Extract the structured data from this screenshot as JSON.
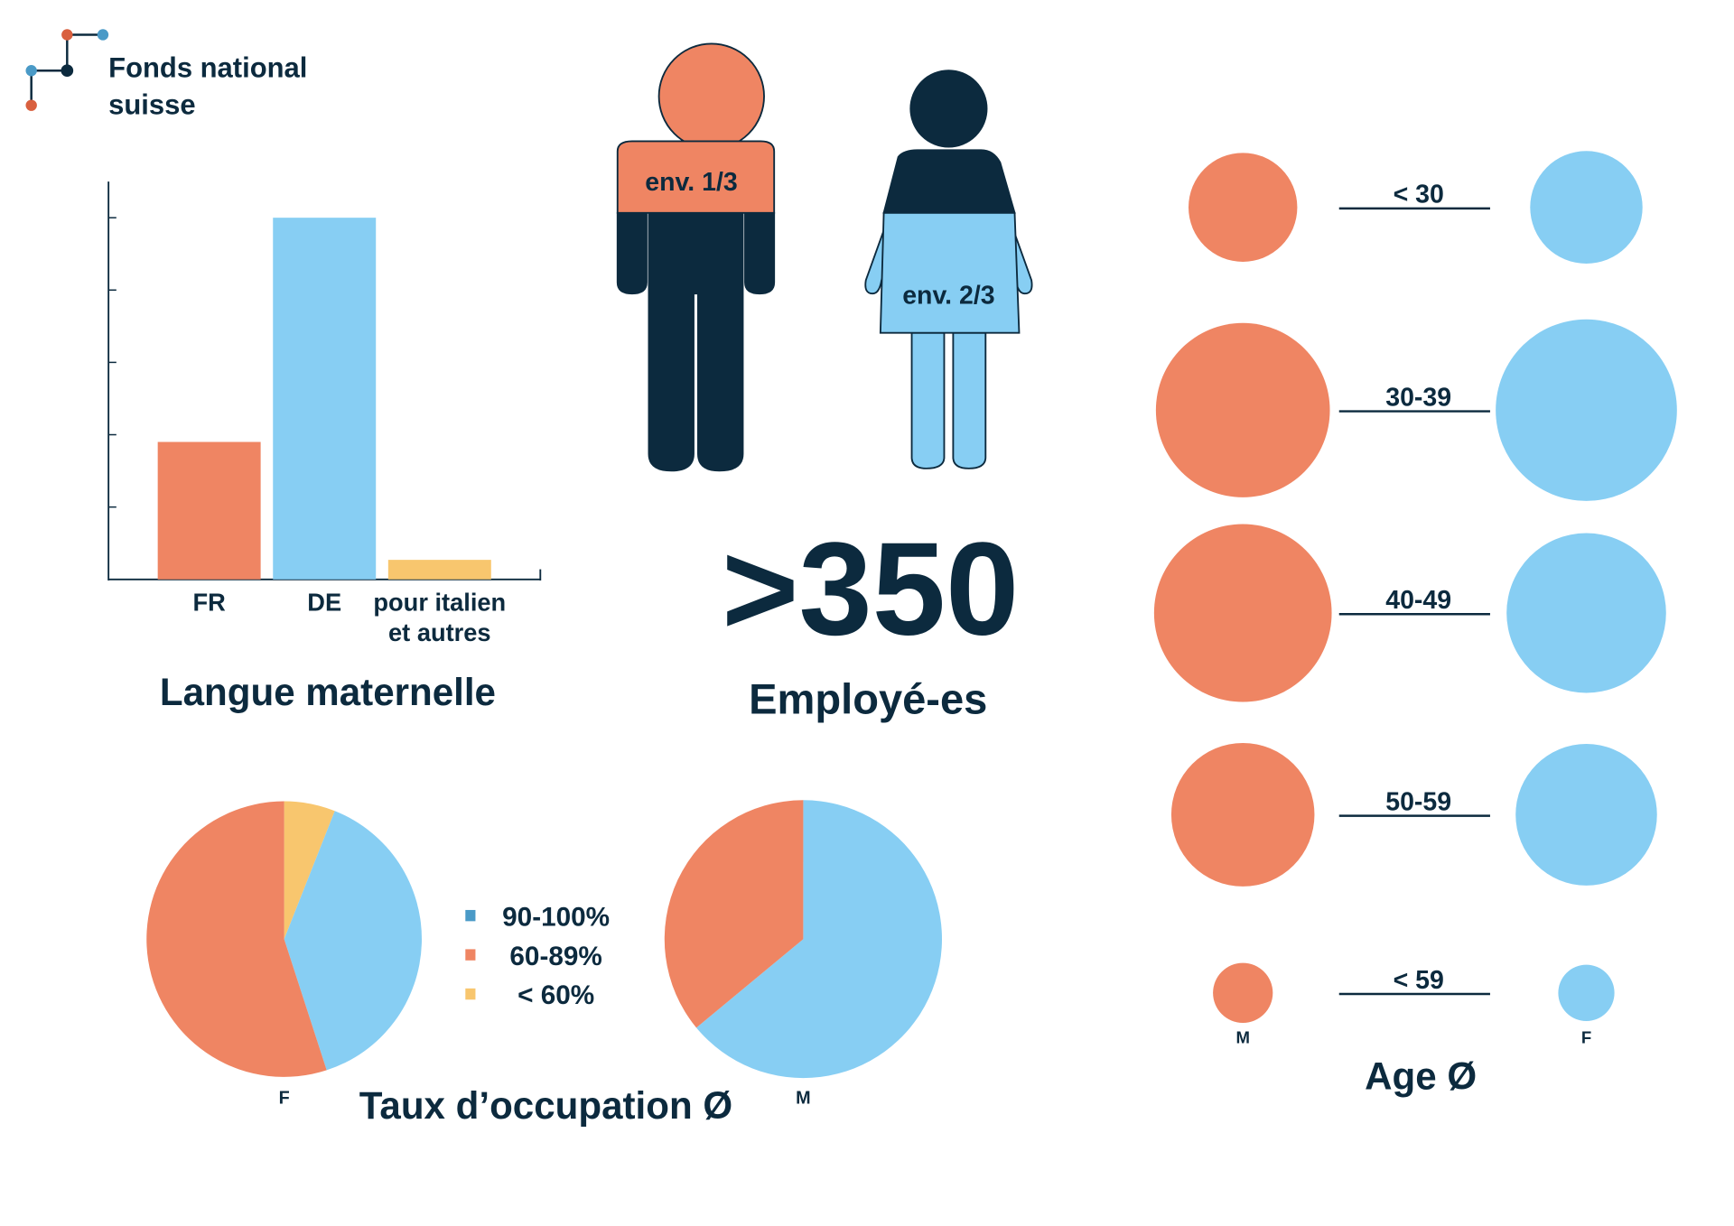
{
  "logo": {
    "line1": "Fonds national",
    "line2": "suisse"
  },
  "colors": {
    "orange": "#EF8563",
    "blue": "#87CEF3",
    "yellow": "#F8C66E",
    "navy": "#0C2A3E",
    "legend_blue": "#4A9AC7"
  },
  "figures": {
    "male_label": "env. 1/3",
    "female_label": "env. 2/3"
  },
  "headline": {
    "number": ">350",
    "caption": "Employé-es"
  },
  "chart_data": [
    {
      "type": "bar",
      "title": "Langue maternelle",
      "categories": [
        "FR",
        "DE",
        "pour italien et autres"
      ],
      "category_lines": [
        [
          "FR"
        ],
        [
          "DE"
        ],
        [
          "pour italien",
          "et autres"
        ]
      ],
      "values": [
        1.9,
        5.0,
        0.27
      ],
      "colors": [
        "#EF8563",
        "#87CEF3",
        "#F8C66E"
      ],
      "ylim": [
        0,
        5.5
      ],
      "yticks": [
        1,
        2,
        3,
        4,
        5
      ],
      "xlabel": "",
      "ylabel": ""
    },
    {
      "type": "pie",
      "title": "Taux d’occupation Ø",
      "legend": [
        {
          "label": "90-100%",
          "color": "#4A9AC7"
        },
        {
          "label": "60-89%",
          "color": "#EF8563"
        },
        {
          "label": "< 60%",
          "color": "#F8C66E"
        }
      ],
      "pies": [
        {
          "name": "F",
          "slices": [
            {
              "category": "< 60%",
              "value": 6,
              "color": "#F8C66E"
            },
            {
              "category": "90-100%",
              "value": 39,
              "color": "#87CEF3"
            },
            {
              "category": "60-89%",
              "value": 55,
              "color": "#EF8563"
            }
          ]
        },
        {
          "name": "M",
          "slices": [
            {
              "category": "90-100%",
              "value": 64,
              "color": "#87CEF3"
            },
            {
              "category": "60-89%",
              "value": 36,
              "color": "#EF8563"
            }
          ]
        }
      ]
    },
    {
      "type": "bubble",
      "title": "Age Ø",
      "series_labels": {
        "M": "M",
        "F": "F"
      },
      "categories": [
        "< 30",
        "30-39",
        "40-49",
        "50-59",
        "< 59"
      ],
      "M": [
        0.6,
        0.96,
        0.98,
        0.79,
        0.33
      ],
      "F": [
        0.62,
        1.0,
        0.88,
        0.78,
        0.31
      ]
    }
  ]
}
